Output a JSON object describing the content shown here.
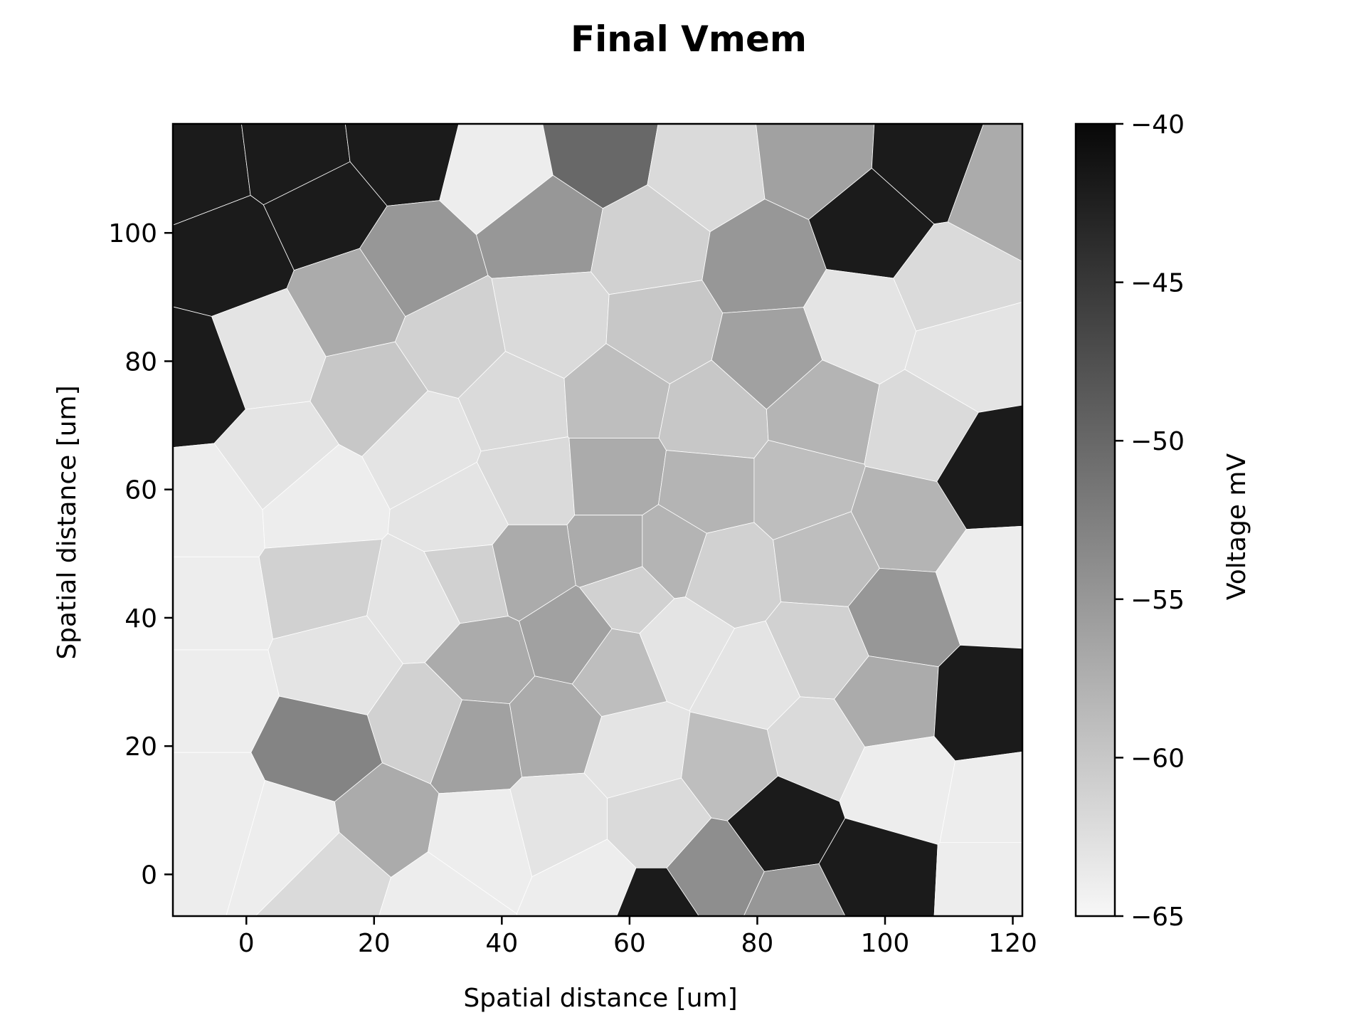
{
  "chart_data": {
    "type": "heatmap",
    "title": "Final Vmem",
    "xlabel": "Spatial distance [um]",
    "ylabel": "Spatial distance [um]",
    "xlim": [
      -11.5,
      121.5
    ],
    "ylim": [
      -6.5,
      117
    ],
    "x_ticks": [
      0,
      20,
      40,
      60,
      80,
      100,
      120
    ],
    "y_ticks": [
      0,
      20,
      40,
      60,
      80,
      100
    ],
    "colorbar": {
      "label": "Voltage mV",
      "vmin": -65,
      "vmax": -40,
      "ticks": [
        -40,
        -45,
        -50,
        -55,
        -60,
        -65
      ],
      "cmap": "Greys",
      "low_color": "#ffffff",
      "high_color": "#000000"
    },
    "grid": false,
    "cells": [
      {
        "x": -8,
        "y": 110,
        "v": -42
      },
      {
        "x": 8,
        "y": 112,
        "v": -42
      },
      {
        "x": 24,
        "y": 114,
        "v": -42
      },
      {
        "x": 40,
        "y": 110,
        "v": -64
      },
      {
        "x": 55,
        "y": 113,
        "v": -50
      },
      {
        "x": 72,
        "y": 110,
        "v": -62
      },
      {
        "x": 89,
        "y": 112,
        "v": -56
      },
      {
        "x": 107,
        "y": 111,
        "v": -42
      },
      {
        "x": 118,
        "y": 107,
        "v": -57
      },
      {
        "x": -3,
        "y": 97,
        "v": -42
      },
      {
        "x": 12,
        "y": 104,
        "v": -42
      },
      {
        "x": 26,
        "y": 95,
        "v": -55
      },
      {
        "x": 47,
        "y": 101,
        "v": -55
      },
      {
        "x": 63,
        "y": 98,
        "v": -61
      },
      {
        "x": 81,
        "y": 95,
        "v": -55
      },
      {
        "x": 98,
        "y": 101,
        "v": -42
      },
      {
        "x": 110,
        "y": 92,
        "v": -62
      },
      {
        "x": 3,
        "y": 81,
        "v": -63
      },
      {
        "x": 17,
        "y": 89,
        "v": -57
      },
      {
        "x": 32,
        "y": 83,
        "v": -61
      },
      {
        "x": 48,
        "y": 86,
        "v": -62
      },
      {
        "x": 65,
        "y": 85,
        "v": -60
      },
      {
        "x": 82,
        "y": 81,
        "v": -56
      },
      {
        "x": 96,
        "y": 86,
        "v": -63
      },
      {
        "x": 113,
        "y": 81,
        "v": -63
      },
      {
        "x": -8,
        "y": 77,
        "v": -42
      },
      {
        "x": 20,
        "y": 75,
        "v": -60
      },
      {
        "x": 42,
        "y": 73,
        "v": -62
      },
      {
        "x": 58,
        "y": 74,
        "v": -59
      },
      {
        "x": 73,
        "y": 71,
        "v": -60
      },
      {
        "x": 90,
        "y": 72,
        "v": -58
      },
      {
        "x": 106,
        "y": 69,
        "v": -62
      },
      {
        "x": 5,
        "y": 65,
        "v": -63
      },
      {
        "x": 28,
        "y": 67,
        "v": -63
      },
      {
        "x": 44,
        "y": 61,
        "v": -62
      },
      {
        "x": 58,
        "y": 62,
        "v": -57
      },
      {
        "x": 72,
        "y": 60,
        "v": -58
      },
      {
        "x": 87,
        "y": 60,
        "v": -59
      },
      {
        "x": 116,
        "y": 63,
        "v": -42
      },
      {
        "x": -6,
        "y": 57,
        "v": -64
      },
      {
        "x": 11,
        "y": 58,
        "v": -64
      },
      {
        "x": 34,
        "y": 56,
        "v": -63
      },
      {
        "x": 58,
        "y": 50,
        "v": -57
      },
      {
        "x": 75,
        "y": 47,
        "v": -61
      },
      {
        "x": 91,
        "y": 49,
        "v": -59
      },
      {
        "x": 103,
        "y": 55,
        "v": -58
      },
      {
        "x": 12,
        "y": 45,
        "v": -61
      },
      {
        "x": -6,
        "y": 42,
        "v": -64
      },
      {
        "x": 27,
        "y": 42,
        "v": -63
      },
      {
        "x": 35,
        "y": 46,
        "v": -61
      },
      {
        "x": 44,
        "y": 48,
        "v": -57
      },
      {
        "x": 60,
        "y": 44,
        "v": -61
      },
      {
        "x": 66,
        "y": 50,
        "v": -58
      },
      {
        "x": 90,
        "y": 35,
        "v": -61
      },
      {
        "x": 102,
        "y": 40,
        "v": -55
      },
      {
        "x": 117,
        "y": 45,
        "v": -64
      },
      {
        "x": -6,
        "y": 28,
        "v": -64
      },
      {
        "x": 15,
        "y": 33,
        "v": -63
      },
      {
        "x": 37,
        "y": 33,
        "v": -57
      },
      {
        "x": 51,
        "y": 37,
        "v": -56
      },
      {
        "x": 58,
        "y": 32,
        "v": -59
      },
      {
        "x": 68,
        "y": 36,
        "v": -63
      },
      {
        "x": 79,
        "y": 30,
        "v": -63
      },
      {
        "x": 100,
        "y": 27,
        "v": -57
      },
      {
        "x": 116,
        "y": 26,
        "v": -42
      },
      {
        "x": 12,
        "y": 19,
        "v": -53
      },
      {
        "x": 28,
        "y": 24,
        "v": -61
      },
      {
        "x": 36,
        "y": 21,
        "v": -56
      },
      {
        "x": 48,
        "y": 23,
        "v": -57
      },
      {
        "x": 61,
        "y": 19,
        "v": -63
      },
      {
        "x": 76,
        "y": 17,
        "v": -59
      },
      {
        "x": 89,
        "y": 20,
        "v": -62
      },
      {
        "x": -6,
        "y": 10,
        "v": -64
      },
      {
        "x": 8,
        "y": 6,
        "v": -64
      },
      {
        "x": 21,
        "y": 8,
        "v": -57
      },
      {
        "x": 37,
        "y": 5,
        "v": -64
      },
      {
        "x": 49,
        "y": 8,
        "v": -63
      },
      {
        "x": 64,
        "y": 8,
        "v": -62
      },
      {
        "x": 84,
        "y": 8,
        "v": -42
      },
      {
        "x": 102,
        "y": 14,
        "v": -64
      },
      {
        "x": 118,
        "y": 11,
        "v": -64
      },
      {
        "x": 14,
        "y": 0,
        "v": -62
      },
      {
        "x": 54,
        "y": -2,
        "v": -64
      },
      {
        "x": 73,
        "y": 0,
        "v": -54
      },
      {
        "x": 98,
        "y": 0,
        "v": -42
      },
      {
        "x": 118,
        "y": -1,
        "v": -64
      },
      {
        "x": 30,
        "y": -5,
        "v": -64
      },
      {
        "x": 64,
        "y": -6,
        "v": -42
      },
      {
        "x": 86,
        "y": -6,
        "v": -55
      }
    ]
  }
}
